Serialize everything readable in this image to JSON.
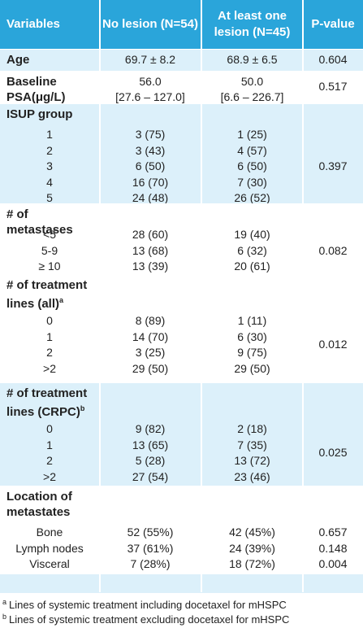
{
  "table": {
    "header": [
      "Variables",
      "No lesion (N=54)",
      "At least one lesion  (N=45)",
      "P-value"
    ],
    "sections": [
      {
        "label": "Age",
        "no": [
          "69.7 ± 8.2"
        ],
        "yes": [
          "68.9 ± 6.5"
        ],
        "p_value": "0.604"
      },
      {
        "label": "Baseline PSA(μg/L)",
        "no": [
          "56.0",
          "[27.6 – 127.0]"
        ],
        "yes": [
          "50.0",
          "[6.6 – 226.7]"
        ],
        "p_value": "0.517"
      },
      {
        "label": "ISUP group",
        "p_value": "0.397",
        "items": [
          {
            "label": "1",
            "no": "3 (75)",
            "yes": "1 (25)"
          },
          {
            "label": "2",
            "no": "3 (43)",
            "yes": "4 (57)"
          },
          {
            "label": "3",
            "no": "6 (50)",
            "yes": "6 (50)"
          },
          {
            "label": "4",
            "no": "16 (70)",
            "yes": "7 (30)"
          },
          {
            "label": "5",
            "no": "24 (48)",
            "yes": "26 (52)"
          }
        ]
      },
      {
        "label": "# of metastases",
        "p_value": "0.082",
        "items": [
          {
            "label": "<5",
            "no": "28 (60)",
            "yes": "19 (40)"
          },
          {
            "label": "5-9",
            "no": "13 (68)",
            "yes": "6 (32)"
          },
          {
            "label": "≥ 10",
            "no": "13 (39)",
            "yes": "20 (61)"
          }
        ]
      },
      {
        "label": "# of treatment lines (all)",
        "label_sup": "a",
        "p_value": "0.012",
        "items": [
          {
            "label": "0",
            "no": "8 (89)",
            "yes": "1 (11)"
          },
          {
            "label": "1",
            "no": "14 (70)",
            "yes": "6 (30)"
          },
          {
            "label": "2",
            "no": "3 (25)",
            "yes": "9 (75)"
          },
          {
            "label": ">2",
            "no": "29 (50)",
            "yes": "29 (50)"
          }
        ]
      },
      {
        "label": "# of treatment lines (CRPC)",
        "label_sup": "b",
        "p_value": "0.025",
        "items": [
          {
            "label": "0",
            "no": "9 (82)",
            "yes": "2 (18)"
          },
          {
            "label": "1",
            "no": "13 (65)",
            "yes": "7 (35)"
          },
          {
            "label": "2",
            "no": "5 (28)",
            "yes": "13 (72)"
          },
          {
            "label": ">2",
            "no": "27 (54)",
            "yes": "23 (46)"
          }
        ]
      },
      {
        "label": "Location of metastates",
        "items": [
          {
            "label": "Bone",
            "no": "52 (55%)",
            "yes": "42 (45%)",
            "p_value": "0.657"
          },
          {
            "label": "Lymph nodes",
            "no": "37 (61%)",
            "yes": "24 (39%)",
            "p_value": "0.148"
          },
          {
            "label": "Visceral",
            "no": "7 (28%)",
            "yes": "18 (72%)",
            "p_value": "0.004"
          }
        ]
      }
    ],
    "footnotes": [
      {
        "mark": "a",
        "text": "Lines of systemic treatment including docetaxel for mHSPC"
      },
      {
        "mark": "b",
        "text": "Lines of systemic treatment excluding docetaxel for mHSPC"
      }
    ]
  }
}
